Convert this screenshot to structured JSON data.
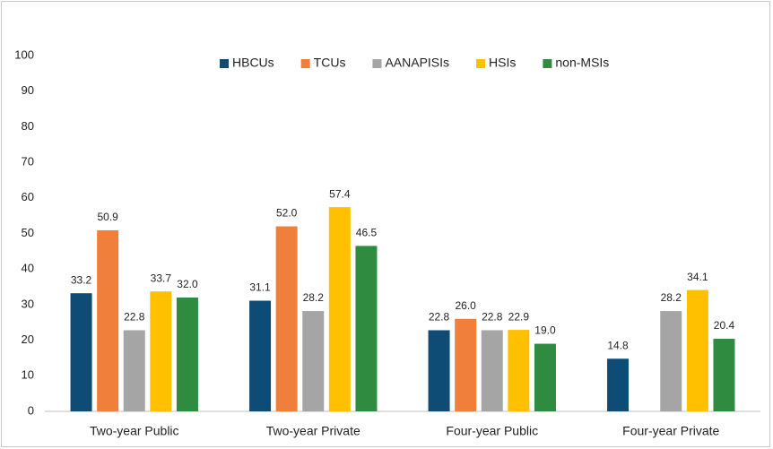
{
  "chart_data": {
    "type": "bar",
    "categories": [
      "Two-year Public",
      "Two-year Private",
      "Four-year Public",
      "Four-year Private"
    ],
    "series": [
      {
        "name": "HBCUs",
        "color": "#0f4c75",
        "values": [
          33.2,
          31.1,
          22.8,
          14.8
        ],
        "value_labels": [
          "33.2",
          "31.1",
          "22.8",
          "14.8"
        ]
      },
      {
        "name": "TCUs",
        "color": "#f07f3c",
        "values": [
          50.9,
          52.0,
          26.0,
          null
        ],
        "value_labels": [
          "50.9",
          "52.0",
          "26.0",
          null
        ]
      },
      {
        "name": "AANAPISIs",
        "color": "#a5a5a5",
        "values": [
          22.8,
          28.2,
          22.8,
          28.2
        ],
        "value_labels": [
          "22.8",
          "28.2",
          "22.8",
          "28.2"
        ]
      },
      {
        "name": "HSIs",
        "color": "#ffc000",
        "values": [
          33.7,
          57.4,
          22.9,
          34.1
        ],
        "value_labels": [
          "33.7",
          "57.4",
          "22.9",
          "34.1"
        ]
      },
      {
        "name": "non-MSIs",
        "color": "#2e8b3f",
        "values": [
          32.0,
          46.5,
          19.0,
          20.4
        ],
        "value_labels": [
          "32.0",
          "46.5",
          "19.0",
          "20.4"
        ]
      }
    ],
    "ylim": [
      0,
      100
    ],
    "yticks": [
      0,
      10,
      20,
      30,
      40,
      50,
      60,
      70,
      80,
      90,
      100
    ],
    "grid": false,
    "legend": "top"
  }
}
